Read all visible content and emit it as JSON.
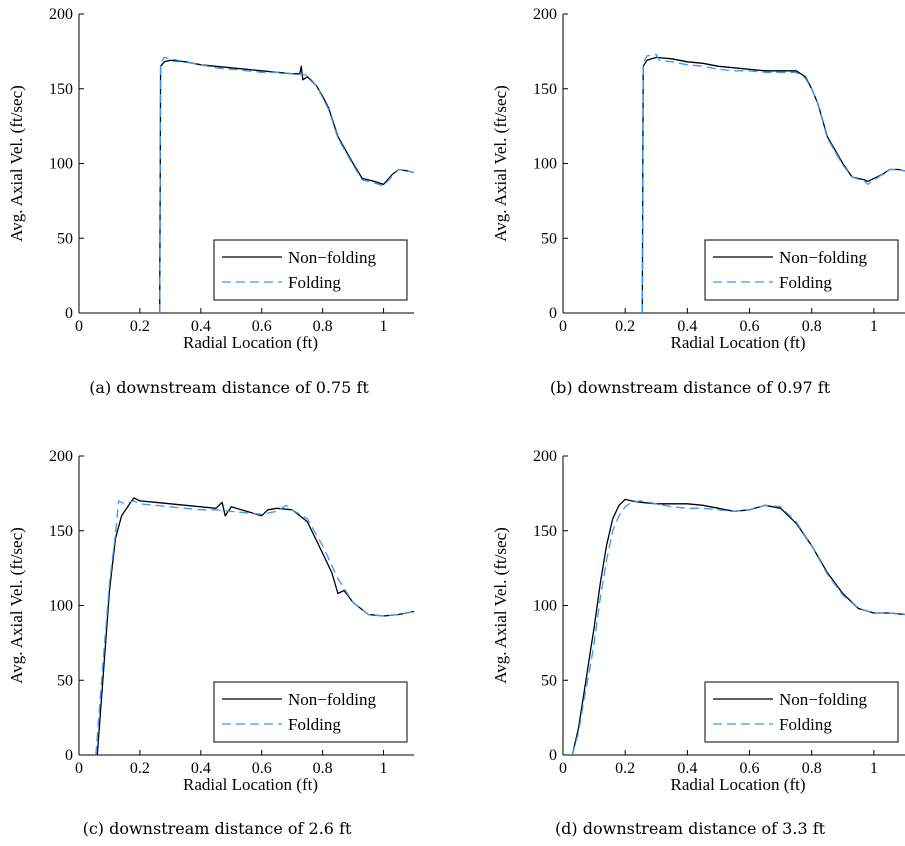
{
  "chart_data": [
    {
      "type": "line",
      "caption": "(a) downstream distance of 0.75 ft",
      "xlabel": "Radial Location (ft)",
      "ylabel": "Avg. Axial Vel. (ft/sec)",
      "xlim": [
        0,
        1.1
      ],
      "ylim": [
        0,
        200
      ],
      "xticks": [
        "0",
        "0.2",
        "0.4",
        "0.6",
        "0.8",
        "1"
      ],
      "yticks": [
        "0",
        "50",
        "100",
        "150",
        "200"
      ],
      "xtick_values": [
        0,
        0.2,
        0.4,
        0.6,
        0.8,
        1.0
      ],
      "ytick_values": [
        0,
        50,
        100,
        150,
        200
      ],
      "legend_position": "bottom-right",
      "series": [
        {
          "name": "Non−folding",
          "color": "#000000",
          "style": "solid",
          "x": [
            0.265,
            0.268,
            0.28,
            0.3,
            0.35,
            0.4,
            0.45,
            0.5,
            0.55,
            0.6,
            0.65,
            0.7,
            0.725,
            0.73,
            0.735,
            0.75,
            0.78,
            0.8,
            0.82,
            0.85,
            0.9,
            0.93,
            0.97,
            1.0,
            1.03,
            1.05,
            1.08,
            1.1
          ],
          "y": [
            0,
            165,
            168,
            169,
            168,
            166,
            165,
            164,
            163,
            162,
            161,
            160,
            160,
            165,
            156,
            158,
            152,
            145,
            137,
            118,
            100,
            90,
            88,
            86,
            93,
            96,
            95,
            94
          ]
        },
        {
          "name": "Folding",
          "color": "#3399ff",
          "style": "dashed",
          "x": [
            0.265,
            0.268,
            0.28,
            0.3,
            0.35,
            0.4,
            0.45,
            0.5,
            0.55,
            0.6,
            0.65,
            0.7,
            0.75,
            0.78,
            0.8,
            0.82,
            0.85,
            0.9,
            0.93,
            0.97,
            1.0,
            1.03,
            1.05,
            1.08,
            1.1
          ],
          "y": [
            0,
            167,
            171,
            170,
            168,
            166,
            164,
            163,
            162,
            161,
            161,
            160,
            159,
            152,
            144,
            136,
            117,
            99,
            89,
            87,
            85,
            92,
            96,
            95,
            94
          ]
        }
      ]
    },
    {
      "type": "line",
      "caption": "(b) downstream distance of 0.97 ft",
      "xlabel": "Radial Location (ft)",
      "ylabel": "Avg. Axial Vel. (ft/sec)",
      "xlim": [
        0,
        1.1
      ],
      "ylim": [
        0,
        200
      ],
      "xticks": [
        "0",
        "0.2",
        "0.4",
        "0.6",
        "0.8",
        "1"
      ],
      "yticks": [
        "0",
        "50",
        "100",
        "150",
        "200"
      ],
      "xtick_values": [
        0,
        0.2,
        0.4,
        0.6,
        0.8,
        1.0
      ],
      "ytick_values": [
        0,
        50,
        100,
        150,
        200
      ],
      "legend_position": "bottom-right",
      "series": [
        {
          "name": "Non−folding",
          "color": "#000000",
          "style": "solid",
          "x": [
            0.255,
            0.258,
            0.27,
            0.3,
            0.35,
            0.4,
            0.45,
            0.5,
            0.55,
            0.6,
            0.65,
            0.7,
            0.75,
            0.78,
            0.8,
            0.82,
            0.85,
            0.9,
            0.93,
            0.97,
            0.98,
            1.0,
            1.03,
            1.05,
            1.08,
            1.1
          ],
          "y": [
            0,
            165,
            169,
            171,
            170,
            168,
            167,
            165,
            164,
            163,
            162,
            162,
            162,
            158,
            150,
            140,
            118,
            100,
            91,
            89,
            88,
            90,
            93,
            96,
            96,
            95
          ]
        },
        {
          "name": "Folding",
          "color": "#3399ff",
          "style": "dashed",
          "x": [
            0.255,
            0.258,
            0.27,
            0.3,
            0.31,
            0.35,
            0.4,
            0.45,
            0.5,
            0.55,
            0.6,
            0.65,
            0.7,
            0.75,
            0.78,
            0.8,
            0.82,
            0.85,
            0.9,
            0.93,
            0.97,
            0.98,
            1.0,
            1.03,
            1.05,
            1.08,
            1.1
          ],
          "y": [
            0,
            167,
            172,
            173,
            169,
            168,
            166,
            165,
            163,
            162,
            162,
            161,
            161,
            161,
            157,
            150,
            140,
            117,
            99,
            91,
            88,
            86,
            89,
            93,
            96,
            96,
            95
          ]
        }
      ]
    },
    {
      "type": "line",
      "caption": "(c) downstream distance of 2.6 ft",
      "xlabel": "Radial Location (ft)",
      "ylabel": "Avg. Axial Vel. (ft/sec)",
      "xlim": [
        0,
        1.1
      ],
      "ylim": [
        0,
        200
      ],
      "xticks": [
        "0",
        "0.2",
        "0.4",
        "0.6",
        "0.8",
        "1"
      ],
      "yticks": [
        "0",
        "50",
        "100",
        "150",
        "200"
      ],
      "xtick_values": [
        0,
        0.2,
        0.4,
        0.6,
        0.8,
        1.0
      ],
      "ytick_values": [
        0,
        50,
        100,
        150,
        200
      ],
      "legend_position": "bottom-right",
      "series": [
        {
          "name": "Non−folding",
          "color": "#000000",
          "style": "solid",
          "x": [
            0.06,
            0.08,
            0.1,
            0.12,
            0.14,
            0.16,
            0.18,
            0.2,
            0.25,
            0.3,
            0.35,
            0.4,
            0.45,
            0.47,
            0.48,
            0.5,
            0.55,
            0.6,
            0.62,
            0.65,
            0.7,
            0.75,
            0.8,
            0.83,
            0.85,
            0.87,
            0.9,
            0.95,
            1.0,
            1.05,
            1.1
          ],
          "y": [
            0,
            55,
            110,
            145,
            160,
            166,
            172,
            170,
            169,
            168,
            167,
            166,
            165,
            169,
            160,
            166,
            163,
            160,
            164,
            165,
            164,
            156,
            135,
            122,
            108,
            110,
            102,
            94,
            93,
            94,
            96
          ]
        },
        {
          "name": "Folding",
          "color": "#3399ff",
          "style": "dashed",
          "x": [
            0.055,
            0.08,
            0.1,
            0.12,
            0.13,
            0.15,
            0.18,
            0.2,
            0.25,
            0.3,
            0.35,
            0.4,
            0.45,
            0.5,
            0.55,
            0.6,
            0.65,
            0.68,
            0.7,
            0.75,
            0.8,
            0.85,
            0.9,
            0.95,
            1.0,
            1.05,
            1.1
          ],
          "y": [
            0,
            65,
            115,
            148,
            170,
            168,
            170,
            168,
            167,
            166,
            165,
            164,
            164,
            163,
            162,
            161,
            163,
            167,
            164,
            158,
            140,
            118,
            102,
            94,
            93,
            94,
            96
          ]
        }
      ]
    },
    {
      "type": "line",
      "caption": "(d) downstream distance of 3.3 ft",
      "xlabel": "Radial Location (ft)",
      "ylabel": "Avg. Axial Vel. (ft/sec)",
      "xlim": [
        0,
        1.1
      ],
      "ylim": [
        0,
        200
      ],
      "xticks": [
        "0",
        "0.2",
        "0.4",
        "0.6",
        "0.8",
        "1"
      ],
      "yticks": [
        "0",
        "50",
        "100",
        "150",
        "200"
      ],
      "xtick_values": [
        0,
        0.2,
        0.4,
        0.6,
        0.8,
        1.0
      ],
      "ytick_values": [
        0,
        50,
        100,
        150,
        200
      ],
      "legend_position": "bottom-right",
      "series": [
        {
          "name": "Non−folding",
          "color": "#000000",
          "style": "solid",
          "x": [
            0.03,
            0.05,
            0.07,
            0.09,
            0.1,
            0.12,
            0.14,
            0.16,
            0.18,
            0.2,
            0.22,
            0.25,
            0.3,
            0.35,
            0.4,
            0.45,
            0.5,
            0.55,
            0.6,
            0.65,
            0.7,
            0.75,
            0.8,
            0.85,
            0.9,
            0.95,
            1.0,
            1.05,
            1.1
          ],
          "y": [
            0,
            18,
            45,
            72,
            85,
            115,
            140,
            158,
            167,
            171,
            170,
            169,
            168,
            168,
            168,
            167,
            165,
            163,
            164,
            167,
            165,
            155,
            140,
            122,
            108,
            98,
            95,
            95,
            94
          ]
        },
        {
          "name": "Folding",
          "color": "#3399ff",
          "style": "dashed",
          "x": [
            0.03,
            0.05,
            0.07,
            0.09,
            0.1,
            0.12,
            0.14,
            0.16,
            0.18,
            0.2,
            0.22,
            0.25,
            0.3,
            0.35,
            0.4,
            0.45,
            0.5,
            0.55,
            0.6,
            0.65,
            0.7,
            0.75,
            0.8,
            0.85,
            0.9,
            0.95,
            1.0,
            1.05,
            1.1
          ],
          "y": [
            0,
            15,
            40,
            62,
            75,
            105,
            130,
            150,
            160,
            166,
            169,
            170,
            168,
            166,
            165,
            165,
            164,
            163,
            164,
            167,
            166,
            156,
            140,
            121,
            107,
            98,
            95,
            95,
            94
          ]
        }
      ]
    }
  ]
}
